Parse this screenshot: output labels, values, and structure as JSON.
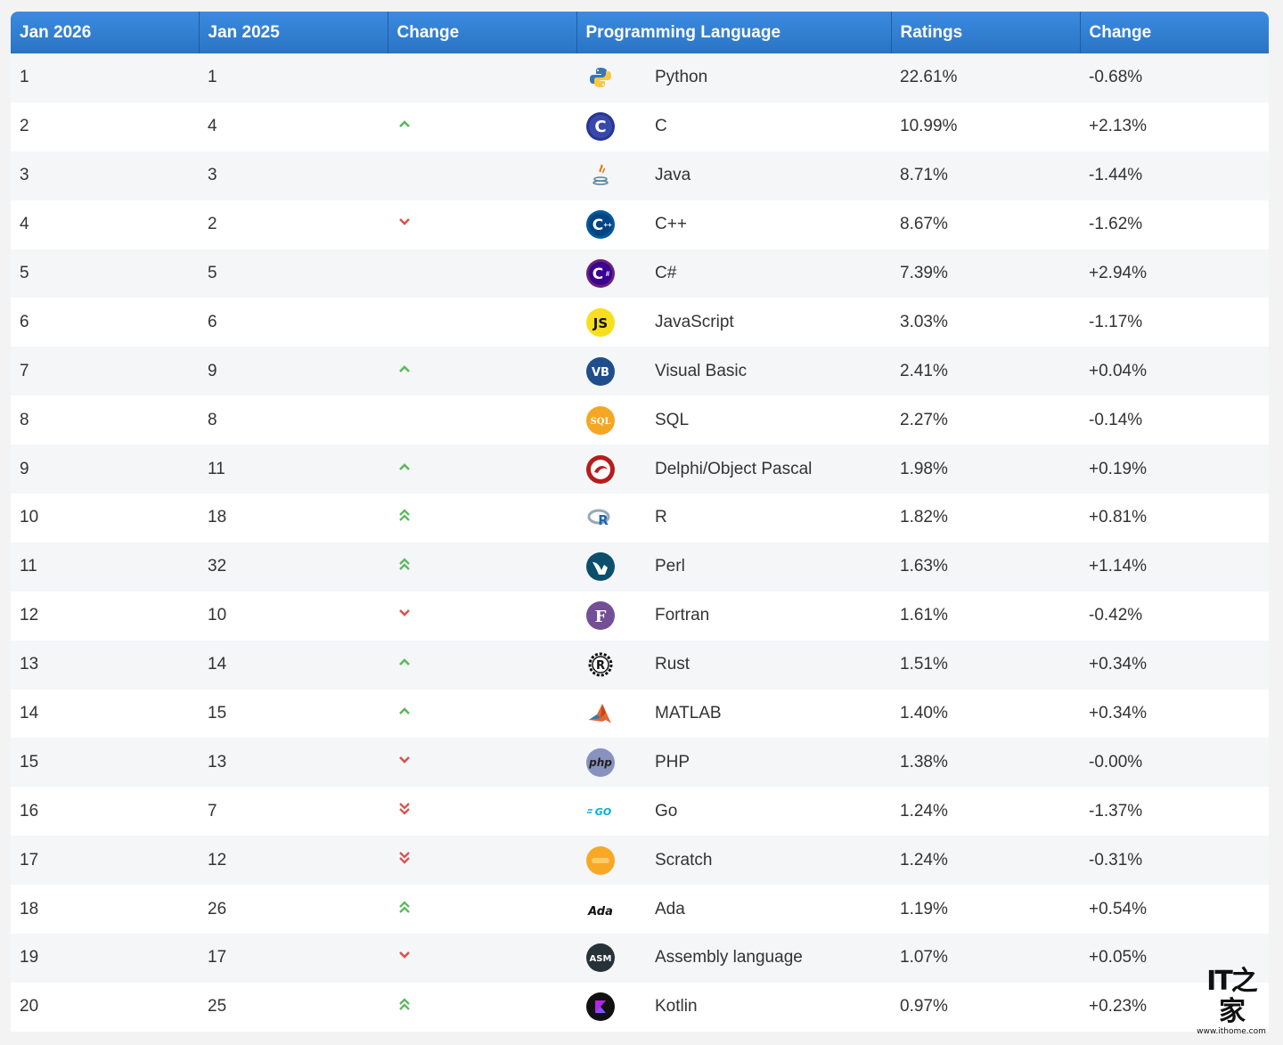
{
  "header": {
    "col_jan2026": "Jan 2026",
    "col_jan2025": "Jan 2025",
    "col_change": "Change",
    "col_language": "Programming Language",
    "col_ratings": "Ratings",
    "col_ratings_change": "Change"
  },
  "rows": [
    {
      "rank2026": "1",
      "rank2025": "1",
      "trend": "none",
      "icon": "python-icon",
      "language": "Python",
      "rating": "22.61%",
      "change": "-0.68%"
    },
    {
      "rank2026": "2",
      "rank2025": "4",
      "trend": "up",
      "icon": "c-icon",
      "language": "C",
      "rating": "10.99%",
      "change": "+2.13%"
    },
    {
      "rank2026": "3",
      "rank2025": "3",
      "trend": "none",
      "icon": "java-icon",
      "language": "Java",
      "rating": "8.71%",
      "change": "-1.44%"
    },
    {
      "rank2026": "4",
      "rank2025": "2",
      "trend": "down",
      "icon": "cpp-icon",
      "language": "C++",
      "rating": "8.67%",
      "change": "-1.62%"
    },
    {
      "rank2026": "5",
      "rank2025": "5",
      "trend": "none",
      "icon": "csharp-icon",
      "language": "C#",
      "rating": "7.39%",
      "change": "+2.94%"
    },
    {
      "rank2026": "6",
      "rank2025": "6",
      "trend": "none",
      "icon": "javascript-icon",
      "language": "JavaScript",
      "rating": "3.03%",
      "change": "-1.17%"
    },
    {
      "rank2026": "7",
      "rank2025": "9",
      "trend": "up",
      "icon": "visual-basic-icon",
      "language": "Visual Basic",
      "rating": "2.41%",
      "change": "+0.04%"
    },
    {
      "rank2026": "8",
      "rank2025": "8",
      "trend": "none",
      "icon": "sql-icon",
      "language": "SQL",
      "rating": "2.27%",
      "change": "-0.14%"
    },
    {
      "rank2026": "9",
      "rank2025": "11",
      "trend": "up",
      "icon": "delphi-icon",
      "language": "Delphi/Object Pascal",
      "rating": "1.98%",
      "change": "+0.19%"
    },
    {
      "rank2026": "10",
      "rank2025": "18",
      "trend": "up2",
      "icon": "r-icon",
      "language": "R",
      "rating": "1.82%",
      "change": "+0.81%"
    },
    {
      "rank2026": "11",
      "rank2025": "32",
      "trend": "up2",
      "icon": "perl-icon",
      "language": "Perl",
      "rating": "1.63%",
      "change": "+1.14%"
    },
    {
      "rank2026": "12",
      "rank2025": "10",
      "trend": "down",
      "icon": "fortran-icon",
      "language": "Fortran",
      "rating": "1.61%",
      "change": "-0.42%"
    },
    {
      "rank2026": "13",
      "rank2025": "14",
      "trend": "up",
      "icon": "rust-icon",
      "language": "Rust",
      "rating": "1.51%",
      "change": "+0.34%"
    },
    {
      "rank2026": "14",
      "rank2025": "15",
      "trend": "up",
      "icon": "matlab-icon",
      "language": "MATLAB",
      "rating": "1.40%",
      "change": "+0.34%"
    },
    {
      "rank2026": "15",
      "rank2025": "13",
      "trend": "down",
      "icon": "php-icon",
      "language": "PHP",
      "rating": "1.38%",
      "change": "-0.00%"
    },
    {
      "rank2026": "16",
      "rank2025": "7",
      "trend": "down2",
      "icon": "go-icon",
      "language": "Go",
      "rating": "1.24%",
      "change": "-1.37%"
    },
    {
      "rank2026": "17",
      "rank2025": "12",
      "trend": "down2",
      "icon": "scratch-icon",
      "language": "Scratch",
      "rating": "1.24%",
      "change": "-0.31%"
    },
    {
      "rank2026": "18",
      "rank2025": "26",
      "trend": "up2",
      "icon": "ada-icon",
      "language": "Ada",
      "rating": "1.19%",
      "change": "+0.54%"
    },
    {
      "rank2026": "19",
      "rank2025": "17",
      "trend": "down",
      "icon": "assembly-icon",
      "language": "Assembly language",
      "rating": "1.07%",
      "change": "+0.05%"
    },
    {
      "rank2026": "20",
      "rank2025": "25",
      "trend": "up2",
      "icon": "kotlin-icon",
      "language": "Kotlin",
      "rating": "0.97%",
      "change": "+0.23%"
    }
  ],
  "icon_text": {
    "js": "JS",
    "vb": "VB",
    "sql": "SQL",
    "fortran": "F",
    "rust": "R",
    "php": "php",
    "go": "GO",
    "ada": "Ada",
    "asm": "ASM",
    "r": "R",
    "c": "C"
  },
  "watermark": {
    "logo": "IT之家",
    "url": "www.ithome.com"
  },
  "colors": {
    "header": "#2f7fd1",
    "up": "#5cb85c",
    "down": "#d9534f"
  }
}
